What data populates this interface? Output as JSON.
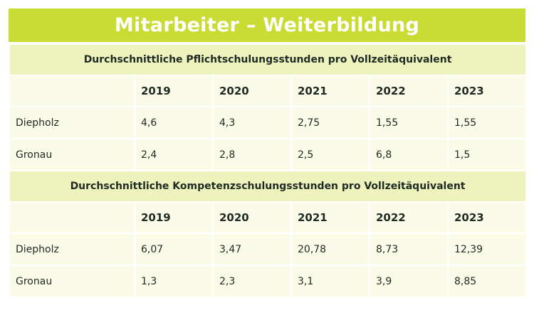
{
  "title": "Mitarbeiter – Weiterbildung",
  "tables": [
    {
      "heading": "Durchschnittliche Pflichtschulungsstunden pro Vollzeitäquivalent",
      "years": [
        "2019",
        "2020",
        "2021",
        "2022",
        "2023"
      ],
      "rows": [
        {
          "label": "Diepholz",
          "values": [
            "4,6",
            "4,3",
            "2,75",
            "1,55",
            "1,55"
          ]
        },
        {
          "label": "Gronau",
          "values": [
            "2,4",
            "2,8",
            "2,5",
            "6,8",
            "1,5"
          ]
        }
      ]
    },
    {
      "heading": "Durchschnittliche Kompetenzschulungsstunden pro Vollzeitäquivalent",
      "years": [
        "2019",
        "2020",
        "2021",
        "2022",
        "2023"
      ],
      "rows": [
        {
          "label": "Diepholz",
          "values": [
            "6,07",
            "3,47",
            "20,78",
            "8,73",
            "12,39"
          ]
        },
        {
          "label": "Gronau",
          "values": [
            "1,3",
            "2,3",
            "3,1",
            "3,9",
            "8,85"
          ]
        }
      ]
    }
  ],
  "colors": {
    "title_bg": "#c9dc34",
    "section_bg": "#eef3be",
    "cell_bg": "#fbfbe9",
    "text": "#1f2a22"
  }
}
